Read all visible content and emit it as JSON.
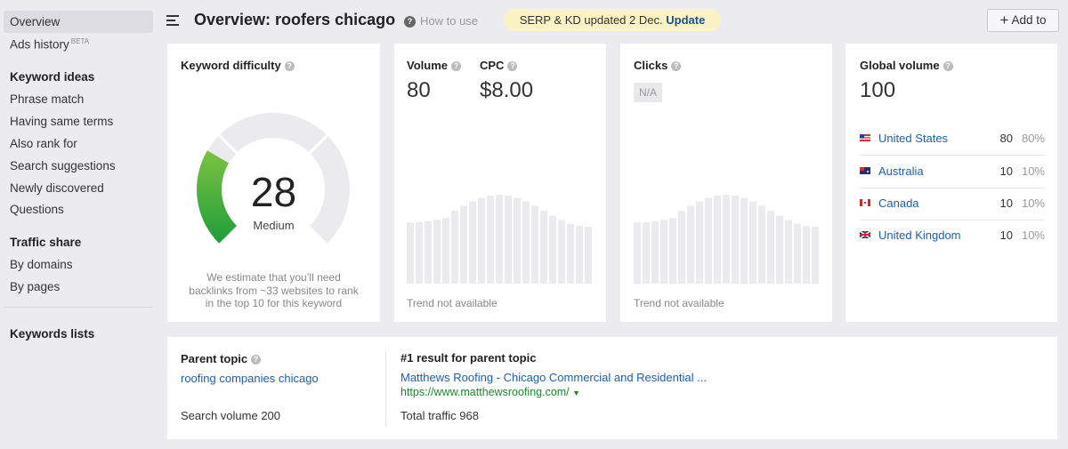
{
  "sidebar": {
    "overview": "Overview",
    "ads_history": "Ads history",
    "beta": "BETA",
    "sections": [
      {
        "title": "Keyword ideas",
        "items": [
          "Phrase match",
          "Having same terms",
          "Also rank for",
          "Search suggestions",
          "Newly discovered",
          "Questions"
        ]
      },
      {
        "title": "Traffic share",
        "items": [
          "By domains",
          "By pages"
        ]
      }
    ],
    "keywords_lists": "Keywords lists"
  },
  "header": {
    "title": "Overview: roofers chicago",
    "how_to_use": "How to use",
    "notice": "SERP & KD updated 2 Dec.",
    "notice_link": "Update",
    "add_to": "Add to"
  },
  "keyword_difficulty": {
    "title": "Keyword difficulty",
    "value": 28,
    "label": "Medium",
    "note": "We estimate that you’ll need backlinks from ~33 websites to rank in the top 10 for this keyword"
  },
  "volume": {
    "title": "Volume",
    "value": 80,
    "trend_note": "Trend not available"
  },
  "cpc": {
    "title": "CPC",
    "value": "$8.00"
  },
  "clicks": {
    "title": "Clicks",
    "value": "N/A",
    "trend_note": "Trend not available"
  },
  "global_volume": {
    "title": "Global volume",
    "value": 100,
    "countries": [
      {
        "name": "United States",
        "volume": 80,
        "share": "80%"
      },
      {
        "name": "Australia",
        "volume": 10,
        "share": "10%"
      },
      {
        "name": "Canada",
        "volume": 10,
        "share": "10%"
      },
      {
        "name": "United Kingdom",
        "volume": 10,
        "share": "10%"
      }
    ]
  },
  "parent_topic": {
    "title": "Parent topic",
    "topic": "roofing companies chicago",
    "search_volume": "Search volume 200",
    "result_title": "#1 result for parent topic",
    "result_link": "Matthews Roofing - Chicago Commercial and Residential ...",
    "result_url": "https://www.matthewsroofing.com/",
    "total_traffic": "Total traffic 968"
  }
}
